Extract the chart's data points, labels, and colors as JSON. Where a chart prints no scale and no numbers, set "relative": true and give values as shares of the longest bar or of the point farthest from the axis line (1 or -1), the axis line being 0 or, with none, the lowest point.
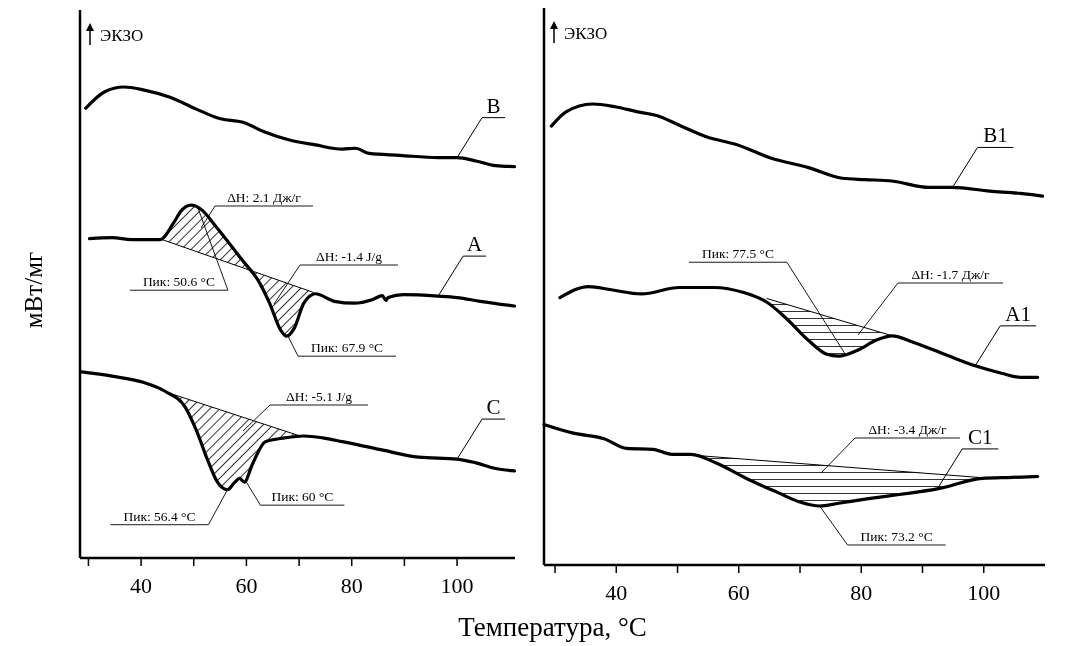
{
  "chart_data": [
    {
      "type": "line",
      "relative": true,
      "xlabel": "Температура, °C",
      "ylabel": "мВт/мг",
      "xlim": [
        28.4,
        111
      ],
      "xticks": [
        {
          "value": 30,
          "label": null
        },
        40,
        {
          "value": 50,
          "label": null
        },
        60,
        {
          "value": 70,
          "label": null
        },
        80,
        {
          "value": 90,
          "label": null
        },
        100
      ],
      "annotations": [
        "ЭКЗО",
        "ΔH: 2.1 Дж/г",
        {
          "text": "Пик: 50.6 °C",
          "x": 50.6,
          "y": 0.749
        },
        "ΔH: -1.4 J/g",
        {
          "text": "Пик: 67.9 °C",
          "x": 67.9,
          "y": 0.471
        },
        "ΔH: -5.1 J/g",
        {
          "text": "Пик: 56.4 °C",
          "x": 56.4,
          "y": 0.145
        },
        {
          "text": "Пик: 60 °C",
          "x": 60,
          "y": 0.161
        }
      ],
      "series": [
        {
          "name": "B",
          "color": "#000000",
          "x": [
            29.5,
            33.1,
            36.7,
            40.4,
            45.5,
            50.5,
            54.9,
            59.3,
            63.6,
            68.0,
            73.1,
            78.2,
            80.7,
            83.3,
            89.1,
            96.4,
            100.0,
            103.6,
            107.3,
            110.9
          ],
          "values": [
            0.955,
            0.99,
            1.0,
            0.994,
            0.978,
            0.953,
            0.933,
            0.925,
            0.904,
            0.888,
            0.877,
            0.868,
            0.87,
            0.859,
            0.855,
            0.85,
            0.85,
            0.843,
            0.833,
            0.831
          ]
        },
        {
          "name": "A",
          "color": "#000000",
          "x": [
            30.2,
            34.5,
            38.2,
            43.6,
            46.2,
            47.6,
            49.5,
            51.3,
            54.2,
            57.1,
            59.3,
            62.2,
            64.4,
            66.5,
            67.6,
            69.1,
            70.9,
            73.1,
            76.7,
            80.4,
            84.0,
            85.8,
            86.5,
            86.9,
            89.8,
            96.4,
            100.0,
            104.4,
            110.9
          ],
          "values": [
            0.678,
            0.68,
            0.676,
            0.676,
            0.712,
            0.737,
            0.749,
            0.741,
            0.704,
            0.663,
            0.631,
            0.59,
            0.541,
            0.484,
            0.471,
            0.488,
            0.541,
            0.561,
            0.545,
            0.541,
            0.549,
            0.557,
            0.547,
            0.553,
            0.559,
            0.556,
            0.553,
            0.545,
            0.535
          ]
        },
        {
          "color": "#000000",
          "x": [
            44.0,
            72.7
          ],
          "values": [
            0.676,
            0.564
          ]
        },
        {
          "name": "C",
          "color": "#000000",
          "x": [
            28.7,
            34.5,
            40.4,
            44.7,
            48.4,
            50.5,
            52.7,
            54.5,
            56.4,
            57.8,
            58.7,
            59.6,
            61.1,
            63.6,
            67.3,
            70.9,
            74.5,
            78.2,
            85.5,
            92.7,
            100.0,
            103.6,
            107.3,
            110.9
          ],
          "values": [
            0.395,
            0.386,
            0.373,
            0.353,
            0.32,
            0.271,
            0.206,
            0.161,
            0.145,
            0.161,
            0.169,
            0.161,
            0.198,
            0.247,
            0.255,
            0.259,
            0.255,
            0.247,
            0.23,
            0.214,
            0.21,
            0.202,
            0.19,
            0.185
          ]
        },
        {
          "color": "#000000",
          "x": [
            45.1,
            70.2
          ],
          "values": [
            0.351,
            0.259
          ]
        }
      ]
    },
    {
      "type": "line",
      "relative": true,
      "xlim": [
        28.2,
        110
      ],
      "xticks": [
        {
          "value": 30,
          "label": null
        },
        40,
        {
          "value": 50,
          "label": null
        },
        60,
        {
          "value": 70,
          "label": null
        },
        80,
        {
          "value": 90,
          "label": null
        },
        100
      ],
      "annotations": [
        "ЭКЗО",
        {
          "text": "Пик: 77.5 °C",
          "x": 77.5,
          "y": 0.455
        },
        "ΔH: -1.7 Дж/г",
        "ΔH: -3.4 Дж/г",
        {
          "text": "Пик: 73.2 °C",
          "x": 73.2,
          "y": 0.128
        }
      ],
      "series": [
        {
          "name": "B1",
          "color": "#000000",
          "x": [
            29.4,
            31.8,
            36.1,
            39.8,
            43.5,
            46.6,
            50.3,
            54.7,
            59.6,
            65.2,
            71.4,
            76.9,
            80.6,
            85.0,
            91.1,
            94.9,
            101.0,
            106.0,
            109.6
          ],
          "values": [
            0.952,
            0.983,
            1.0,
            0.994,
            0.983,
            0.975,
            0.954,
            0.929,
            0.912,
            0.883,
            0.862,
            0.839,
            0.836,
            0.833,
            0.819,
            0.819,
            0.811,
            0.806,
            0.8
          ]
        },
        {
          "name": "A1",
          "color": "#000000",
          "x": [
            30.8,
            35.5,
            39.2,
            44.1,
            50.3,
            55.9,
            60.8,
            64.6,
            67.6,
            71.4,
            74.4,
            76.3,
            79.4,
            82.5,
            85.0,
            88.7,
            93.6,
            98.6,
            102.9,
            106.0,
            108.8
          ],
          "values": [
            0.58,
            0.604,
            0.597,
            0.588,
            0.602,
            0.602,
            0.591,
            0.57,
            0.537,
            0.487,
            0.457,
            0.453,
            0.466,
            0.488,
            0.497,
            0.482,
            0.457,
            0.432,
            0.416,
            0.407,
            0.407
          ]
        },
        {
          "color": "#000000",
          "x": [
            64.6,
            84.6
          ],
          "values": [
            0.578,
            0.499
          ]
        },
        {
          "name": "C1",
          "color": "#000000",
          "x": [
            28.2,
            33.0,
            38.0,
            41.7,
            46.0,
            49.1,
            52.2,
            56.5,
            61.5,
            66.4,
            70.1,
            73.2,
            76.3,
            81.2,
            86.2,
            92.4,
            99.8,
            104.7,
            108.8
          ],
          "values": [
            0.305,
            0.286,
            0.274,
            0.253,
            0.251,
            0.24,
            0.24,
            0.22,
            0.186,
            0.157,
            0.136,
            0.128,
            0.134,
            0.144,
            0.153,
            0.165,
            0.188,
            0.19,
            0.192
          ]
        },
        {
          "color": "#000000",
          "x": [
            52.8,
            100.1
          ],
          "values": [
            0.238,
            0.189
          ]
        }
      ]
    }
  ]
}
